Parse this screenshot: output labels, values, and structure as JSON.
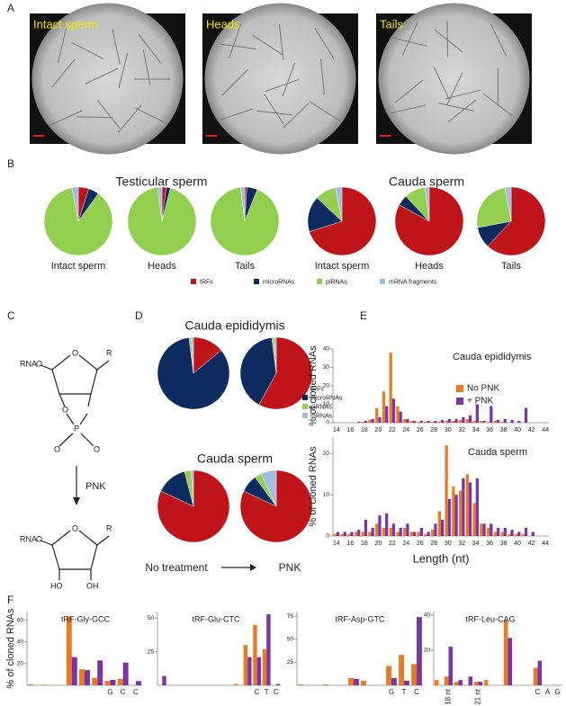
{
  "panel_labels": [
    "A",
    "B",
    "C",
    "D",
    "E",
    "F"
  ],
  "images": [
    {
      "label": "Intact sperm"
    },
    {
      "label": "Heads"
    },
    {
      "label": "Tails"
    }
  ],
  "structure": {
    "top": [
      "RNA",
      "O",
      "R",
      "O",
      "O",
      "P",
      "O",
      "O"
    ],
    "arrow": "PNK",
    "bottom": [
      "RNA",
      "O",
      "R",
      "HO",
      "OH"
    ]
  },
  "chart_data": [
    {
      "type": "pie",
      "categories": [
        "tRFs",
        "microRNAs",
        "piRNAs",
        "mRNA fragments"
      ],
      "colors": [
        "#c0141b",
        "#0d2b5e",
        "#92cf4f",
        "#a3bde0"
      ],
      "groups": [
        {
          "title": "Testicular sperm",
          "pies": [
            {
              "label": "Intact sperm",
              "values": [
                5,
                5,
                87,
                3
              ]
            },
            {
              "label": "Heads",
              "values": [
                2,
                2,
                94,
                2
              ]
            },
            {
              "label": "Tails",
              "values": [
                1,
                5,
                92,
                2
              ]
            }
          ]
        },
        {
          "title": "Cauda sperm",
          "pies": [
            {
              "label": "Intact sperm",
              "values": [
                70,
                17,
                10,
                3
              ]
            },
            {
              "label": "Heads",
              "values": [
                83,
                5,
                10,
                2
              ]
            },
            {
              "label": "Tails",
              "values": [
                62,
                10,
                25,
                3
              ]
            }
          ]
        }
      ]
    },
    {
      "type": "pie",
      "categories": [
        "tRFs",
        "microRNAs",
        "piRNAs",
        "mRNAs"
      ],
      "colors": [
        "#c0141b",
        "#0d2b5e",
        "#92cf4f",
        "#a3bde0"
      ],
      "groups": [
        {
          "title": "Cauda epididymis",
          "pies": [
            {
              "values": [
                14,
                84,
                1,
                1
              ]
            },
            {
              "values": [
                58,
                40,
                1,
                1
              ]
            }
          ]
        },
        {
          "title": "Cauda sperm",
          "pies": [
            {
              "values": [
                82,
                14,
                3,
                1
              ]
            },
            {
              "values": [
                82,
                8,
                3,
                7
              ]
            }
          ]
        }
      ],
      "conditions": [
        "No treatment",
        "PNK"
      ]
    },
    {
      "type": "bar",
      "title": "Cauda epididymis",
      "ylabel": "% of cloned RNAs",
      "categories": [
        14,
        null,
        16,
        null,
        18,
        null,
        20,
        null,
        22,
        null,
        24,
        null,
        26,
        null,
        28,
        null,
        30,
        null,
        32,
        null,
        34,
        null,
        36,
        null,
        38,
        null,
        40,
        null,
        42,
        null,
        44
      ],
      "series": [
        {
          "name": "No PNK",
          "color": "#ea7b1e",
          "values": [
            0,
            0,
            0,
            0,
            0.5,
            1.5,
            8,
            17,
            38,
            9,
            2,
            1,
            0.5,
            0.5,
            0.5,
            0.5,
            1,
            1,
            1.5,
            2,
            1,
            1,
            0.5,
            1,
            0.5,
            0,
            0,
            0,
            0,
            0,
            0
          ]
        },
        {
          "name": "+ PNK",
          "color": "#7a35a8",
          "values": [
            0,
            0,
            0,
            0.5,
            1,
            2,
            3,
            9,
            13,
            6,
            2,
            1,
            1,
            1,
            1,
            1.5,
            2,
            2,
            3,
            4,
            10,
            1,
            9,
            1.5,
            2,
            1.5,
            1,
            8,
            0,
            0,
            0
          ]
        }
      ],
      "ylim": [
        0,
        40
      ],
      "yticks": [
        0,
        10,
        20,
        30,
        40
      ]
    },
    {
      "type": "bar",
      "title": "Cauda sperm",
      "ylabel": "% of cloned RNAs",
      "xlabel": "Length (nt)",
      "categories": [
        14,
        null,
        16,
        null,
        18,
        null,
        20,
        null,
        22,
        null,
        24,
        null,
        26,
        null,
        28,
        null,
        30,
        null,
        32,
        null,
        34,
        null,
        36,
        null,
        38,
        null,
        40,
        null,
        42,
        null,
        44
      ],
      "series": [
        {
          "color": "#ea7b1e",
          "values": [
            0.5,
            0.5,
            0.5,
            1,
            1,
            1,
            3,
            2,
            2,
            1,
            2,
            1,
            1,
            0.5,
            1.5,
            6,
            22,
            12,
            11,
            15,
            8,
            3,
            2,
            1,
            1,
            0.5,
            0.5,
            0.5,
            0,
            0,
            0
          ]
        },
        {
          "color": "#7a35a8",
          "values": [
            1,
            1,
            1,
            1.5,
            4,
            2,
            5,
            5.5,
            3,
            2,
            3,
            1,
            2,
            1,
            3,
            4,
            9,
            10,
            14,
            13,
            14,
            3,
            3,
            2,
            2,
            1.5,
            1,
            2,
            1,
            0,
            0
          ]
        }
      ],
      "ylim": [
        0,
        24
      ],
      "yticks": [
        0,
        10,
        20
      ]
    },
    {
      "type": "bar",
      "title": "tRF-Gly-GCC",
      "ylabel": "% of cloned RNAs",
      "categories": [
        null,
        null,
        null,
        null,
        null,
        null,
        "G",
        "C",
        "C"
      ],
      "series": [
        {
          "color": "#ea7b1e",
          "values": [
            1,
            0.5,
            0,
            63,
            15,
            7,
            4,
            6,
            0
          ]
        },
        {
          "color": "#7a35a8",
          "values": [
            0,
            0,
            0,
            26,
            14,
            23,
            5,
            21,
            4
          ]
        }
      ],
      "ylim": [
        0,
        68
      ],
      "yticks": [
        20,
        40,
        60
      ]
    },
    {
      "type": "bar",
      "title": "tRF-Glu-CTC",
      "categories": [
        null,
        null,
        null,
        null,
        null,
        null,
        null,
        null,
        null,
        null,
        "C",
        "T",
        "C"
      ],
      "series": [
        {
          "color": "#ea7b1e",
          "values": [
            0,
            0,
            0,
            0,
            0,
            0,
            0,
            0,
            1,
            30,
            45,
            27,
            0
          ]
        },
        {
          "color": "#7a35a8",
          "values": [
            7,
            0,
            0,
            0,
            0,
            0,
            0,
            0,
            0,
            21,
            21,
            53,
            1
          ]
        }
      ],
      "ylim": [
        0,
        55
      ],
      "yticks": [
        25,
        50
      ]
    },
    {
      "type": "bar",
      "title": "tRF-Asp-GTC",
      "categories": [
        null,
        null,
        null,
        null,
        null,
        null,
        null,
        "G",
        "T",
        "C"
      ],
      "series": [
        {
          "color": "#ea7b1e",
          "values": [
            1,
            0,
            1,
            0,
            8,
            5,
            0,
            21,
            33,
            23
          ]
        },
        {
          "color": "#7a35a8",
          "values": [
            0,
            0,
            0,
            0,
            7,
            0,
            0,
            8,
            5,
            74
          ]
        }
      ],
      "ylim": [
        0,
        80
      ],
      "yticks": [
        25,
        50,
        75
      ]
    },
    {
      "type": "bar",
      "title": "tRF-Leu-CAG",
      "categories": [
        null,
        "18 nt",
        null,
        null,
        "21 nt",
        null,
        null,
        null,
        null,
        null,
        "C",
        "A",
        "G"
      ],
      "series": [
        {
          "color": "#ea7b1e",
          "values": [
            3,
            5,
            2,
            0,
            2,
            3,
            0,
            37,
            0,
            0,
            10,
            0,
            0
          ]
        },
        {
          "color": "#7a35a8",
          "values": [
            0,
            22,
            3,
            5,
            2,
            0,
            0,
            27,
            0,
            0,
            14,
            0,
            0
          ]
        }
      ],
      "ylim": [
        0,
        42
      ],
      "yticks": [
        20,
        40
      ]
    }
  ]
}
